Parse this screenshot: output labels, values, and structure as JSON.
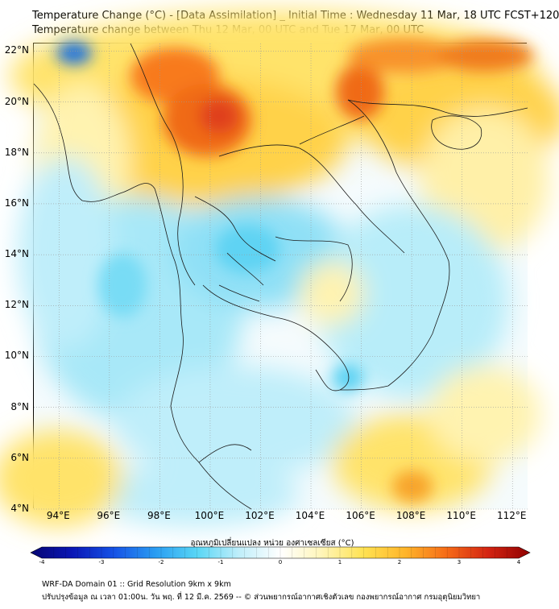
{
  "title_line1": "Temperature Change (°C) - [Data Assimilation] _ Initial Time : Wednesday 11 Mar, 18 UTC FCST+120",
  "title_line2": "Temperature change between Thu 12 Mar, 00 UTC and Tue 17 Mar, 00 UTC",
  "map": {
    "lat_labels": [
      "22°N",
      "20°N",
      "18°N",
      "16°N",
      "14°N",
      "12°N",
      "10°N",
      "8°N",
      "6°N",
      "4°N"
    ],
    "lon_labels": [
      "94°E",
      "96°E",
      "98°E",
      "100°E",
      "102°E",
      "104°E",
      "106°E",
      "108°E",
      "110°E",
      "112°E"
    ],
    "lat_range": [
      4,
      22.3
    ],
    "lon_range": [
      93,
      112.6
    ],
    "grid_color": "#9a9a9a",
    "border_color": "#000000"
  },
  "colorbar": {
    "title": "อุณหภูมิเปลี่ยนแปลง หน่วย องศาเซลเซียส (°C)",
    "ticks": [
      "-4",
      "-3",
      "-2",
      "-1",
      "0",
      "1",
      "2",
      "3",
      "4"
    ],
    "range": [
      -4,
      4
    ],
    "colors": [
      "#060673",
      "#0a17b5",
      "#1552e6",
      "#2a9df2",
      "#58d6f5",
      "#bfeefa",
      "#ffffff",
      "#fff5b8",
      "#ffe252",
      "#ffb52a",
      "#f66b17",
      "#d32412",
      "#8f0000"
    ]
  },
  "footer": {
    "line1": "WRF-DA Domain 01 :: Grid Resolution 9km x 9km",
    "line2": "ปรับปรุงข้อมูล ณ เวลา 01:00น. วัน พฤ. ที่ 12 มี.ค. 2569 -- © ส่วนพยากรณ์อากาศเชิงตัวเลข กองพยากรณ์อากาศ กรมอุตุนิยมวิทยา"
  }
}
